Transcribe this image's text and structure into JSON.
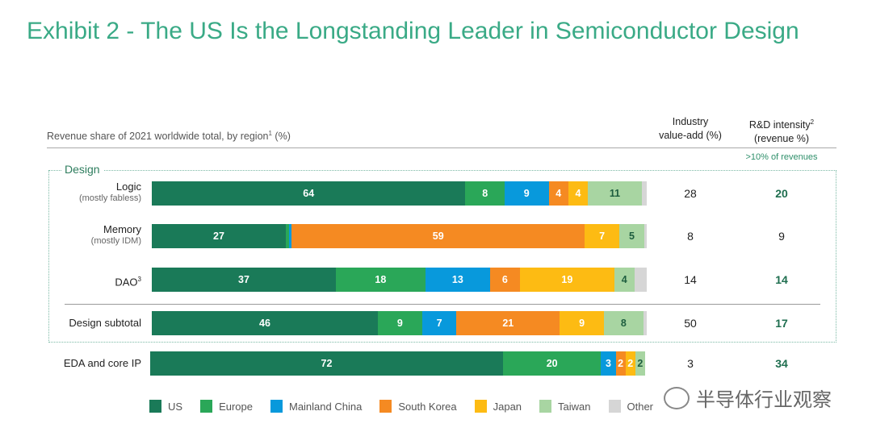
{
  "title": "Exhibit 2 - The US Is the Longstanding Leader in Semiconductor Design",
  "chart_data": {
    "type": "bar",
    "orientation": "horizontal-stacked-100",
    "subtitle": "Revenue share of 2021 worldwide total, by region",
    "subtitle_footnote": "1",
    "subtitle_unit": "(%)",
    "group_label": "Design",
    "columns": {
      "value_add": "Industry value-add (%)",
      "value_add_l1": "Industry",
      "value_add_l2": "value-add (%)",
      "rd_l1": "R&D intensity",
      "rd_footnote": "2",
      "rd_l2": "(revenue %)",
      "rd_note": ">10% of revenues"
    },
    "series": [
      {
        "name": "US",
        "color": "#1a7a58"
      },
      {
        "name": "Europe",
        "color": "#2aa758"
      },
      {
        "name": "Mainland China",
        "color": "#0899dc"
      },
      {
        "name": "South Korea",
        "color": "#f58a22"
      },
      {
        "name": "Japan",
        "color": "#fdbb13"
      },
      {
        "name": "Taiwan",
        "color": "#a8d5a2"
      },
      {
        "name": "Other",
        "color": "#d6d6d6"
      }
    ],
    "rows": [
      {
        "label": "Logic",
        "sub": "(mostly fabless)",
        "values": [
          64,
          8,
          9,
          4,
          4,
          11,
          1
        ],
        "labels": [
          "64",
          "8",
          "9",
          "4",
          "4",
          "11",
          ""
        ],
        "value_add": "28",
        "rd": "20",
        "rd_high": true
      },
      {
        "label": "Memory",
        "sub": "(mostly IDM)",
        "values": [
          27,
          0.6,
          0.6,
          59,
          7,
          5,
          0.5
        ],
        "labels": [
          "27",
          "",
          "",
          "59",
          "7",
          "5",
          ""
        ],
        "value_add": "8",
        "rd": "9",
        "rd_high": false
      },
      {
        "label": "DAO",
        "footnote": "3",
        "values": [
          37,
          18,
          13,
          6,
          19,
          4,
          2.5
        ],
        "labels": [
          "37",
          "18",
          "13",
          "6",
          "19",
          "4",
          ""
        ],
        "value_add": "14",
        "rd": "14",
        "rd_high": true
      },
      {
        "label": "Design subtotal",
        "values": [
          46,
          9,
          7,
          21,
          9,
          8,
          0.7
        ],
        "labels": [
          "46",
          "9",
          "7",
          "21",
          "9",
          "8",
          ""
        ],
        "value_add": "50",
        "rd": "17",
        "rd_high": true
      },
      {
        "label": "EDA and core IP",
        "values": [
          72,
          20,
          3,
          2,
          2,
          2,
          0
        ],
        "labels": [
          "72",
          "20",
          "3",
          "2",
          "2",
          "2",
          ""
        ],
        "value_add": "3",
        "rd": "34",
        "rd_high": true
      }
    ],
    "legend_position": "bottom"
  },
  "watermark": "半导体行业观察"
}
